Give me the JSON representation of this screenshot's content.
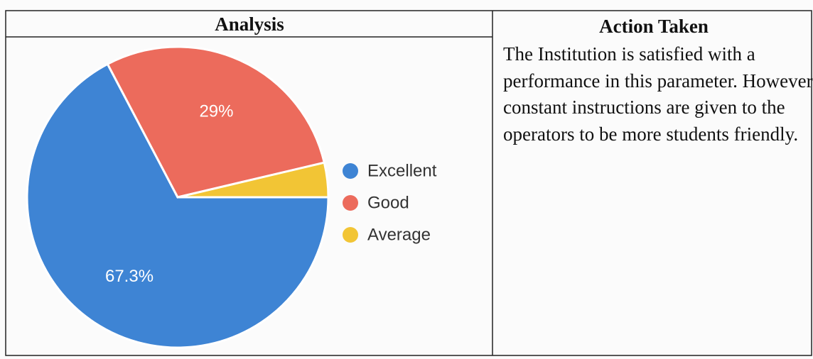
{
  "table": {
    "headers": [
      "Analysis",
      "Action Taken"
    ],
    "action_text": "The Institution is satisfied with a performance in this parameter. However constant instructions are given to the operators to be more students friendly."
  },
  "chart_data": {
    "type": "pie",
    "categories": [
      "Excellent",
      "Good",
      "Average"
    ],
    "values": [
      67.3,
      29,
      3.7
    ],
    "value_labels": [
      "67.3%",
      "29%",
      null
    ],
    "colors": [
      "#3e84d4",
      "#ec6b5c",
      "#f2c535"
    ],
    "legend": "right"
  }
}
